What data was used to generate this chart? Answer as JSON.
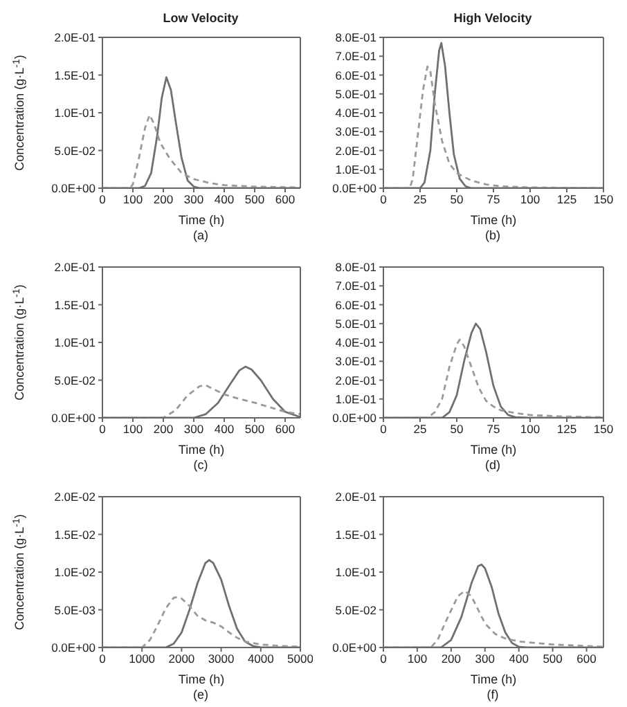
{
  "chart_data": [
    {
      "type": "line",
      "title": "Low Velocity",
      "xlabel": "Time (h)",
      "ylabel": "Concentration (g·L$^{-1}$)",
      "annotations": [
        "(a)"
      ],
      "marker": "none",
      "xlim": [
        0,
        650
      ],
      "xticks": [
        0,
        100,
        200,
        300,
        400,
        500,
        600
      ],
      "ylim": [
        0,
        0.2
      ],
      "yticks": [
        {
          "value": 0,
          "label": "0.0E+00"
        },
        {
          "value": 0.05,
          "label": "5.0E-02"
        },
        {
          "value": 0.1,
          "label": "1.0E-01"
        },
        {
          "value": 0.15,
          "label": "1.5E-01"
        },
        {
          "value": 0.2,
          "label": "2.0E-01"
        }
      ],
      "series": [
        {
          "color": "#707070",
          "line_style": "solid",
          "x": [
            0,
            120,
            140,
            160,
            180,
            195,
            210,
            225,
            240,
            260,
            280,
            300,
            320,
            650
          ],
          "values": [
            0,
            0,
            0.003,
            0.02,
            0.07,
            0.12,
            0.147,
            0.13,
            0.09,
            0.04,
            0.01,
            0.002,
            0,
            0
          ]
        },
        {
          "color": "#9a9a9a",
          "line_style": "dashed",
          "x": [
            0,
            90,
            100,
            120,
            140,
            155,
            170,
            190,
            220,
            260,
            300,
            350,
            400,
            500,
            650
          ],
          "values": [
            0,
            0,
            0.005,
            0.04,
            0.08,
            0.097,
            0.085,
            0.06,
            0.04,
            0.02,
            0.012,
            0.007,
            0.004,
            0.002,
            0.001
          ]
        }
      ]
    },
    {
      "type": "line",
      "title": "High Velocity",
      "xlabel": "Time (h)",
      "annotations": [
        "(b)"
      ],
      "marker": "none",
      "xlim": [
        0,
        150
      ],
      "xticks": [
        0,
        25,
        50,
        75,
        100,
        125,
        150
      ],
      "ylim": [
        0,
        0.8
      ],
      "yticks": [
        {
          "value": 0,
          "label": "0.0E+00"
        },
        {
          "value": 0.1,
          "label": "1.0E-01"
        },
        {
          "value": 0.2,
          "label": "2.0E-01"
        },
        {
          "value": 0.3,
          "label": "3.0E-01"
        },
        {
          "value": 0.4,
          "label": "4.0E-01"
        },
        {
          "value": 0.5,
          "label": "5.0E-01"
        },
        {
          "value": 0.6,
          "label": "6.0E-01"
        },
        {
          "value": 0.7,
          "label": "7.0E-01"
        },
        {
          "value": 0.8,
          "label": "8.0E-01"
        }
      ],
      "series": [
        {
          "color": "#707070",
          "line_style": "solid",
          "x": [
            0,
            25,
            28,
            32,
            35,
            38,
            39.5,
            42,
            45,
            48,
            52,
            56,
            60,
            150
          ],
          "values": [
            0,
            0,
            0.03,
            0.2,
            0.5,
            0.73,
            0.77,
            0.65,
            0.4,
            0.18,
            0.05,
            0.01,
            0,
            0
          ]
        },
        {
          "color": "#9a9a9a",
          "line_style": "dashed",
          "x": [
            0,
            18,
            20,
            23,
            27,
            30,
            32,
            35,
            40,
            45,
            50,
            55,
            60,
            70,
            80,
            100,
            150
          ],
          "values": [
            0,
            0,
            0.05,
            0.25,
            0.52,
            0.645,
            0.62,
            0.45,
            0.25,
            0.13,
            0.08,
            0.06,
            0.04,
            0.02,
            0.01,
            0.004,
            0
          ]
        }
      ]
    },
    {
      "type": "line",
      "xlabel": "Time (h)",
      "ylabel": "Concentration (g·L$^{-1}$)",
      "annotations": [
        "(c)"
      ],
      "marker": "none",
      "xlim": [
        0,
        650
      ],
      "xticks": [
        0,
        100,
        200,
        300,
        400,
        500,
        600
      ],
      "ylim": [
        0,
        0.2
      ],
      "yticks": [
        {
          "value": 0,
          "label": "0.0E+00"
        },
        {
          "value": 0.05,
          "label": "5.0E-02"
        },
        {
          "value": 0.1,
          "label": "1.0E-01"
        },
        {
          "value": 0.15,
          "label": "1.5E-01"
        },
        {
          "value": 0.2,
          "label": "2.0E-01"
        }
      ],
      "series": [
        {
          "color": "#707070",
          "line_style": "solid",
          "x": [
            0,
            300,
            340,
            380,
            420,
            450,
            470,
            490,
            520,
            560,
            600,
            650
          ],
          "values": [
            0,
            0,
            0.005,
            0.02,
            0.045,
            0.063,
            0.068,
            0.064,
            0.05,
            0.025,
            0.008,
            0.001
          ]
        },
        {
          "color": "#9a9a9a",
          "line_style": "dashed",
          "x": [
            0,
            200,
            240,
            280,
            320,
            340,
            360,
            400,
            450,
            500,
            550,
            600,
            650
          ],
          "values": [
            0,
            0,
            0.01,
            0.03,
            0.042,
            0.043,
            0.039,
            0.031,
            0.025,
            0.02,
            0.014,
            0.008,
            0.005
          ]
        }
      ]
    },
    {
      "type": "line",
      "xlabel": "Time (h)",
      "annotations": [
        "(d)"
      ],
      "marker": "none",
      "xlim": [
        0,
        150
      ],
      "xticks": [
        0,
        25,
        50,
        75,
        100,
        125,
        150
      ],
      "ylim": [
        0,
        0.8
      ],
      "yticks": [
        {
          "value": 0,
          "label": "0.0E+00"
        },
        {
          "value": 0.1,
          "label": "1.0E-01"
        },
        {
          "value": 0.2,
          "label": "2.0E-01"
        },
        {
          "value": 0.3,
          "label": "3.0E-01"
        },
        {
          "value": 0.4,
          "label": "4.0E-01"
        },
        {
          "value": 0.5,
          "label": "5.0E-01"
        },
        {
          "value": 0.6,
          "label": "6.0E-01"
        },
        {
          "value": 0.7,
          "label": "7.0E-01"
        },
        {
          "value": 0.8,
          "label": "8.0E-01"
        }
      ],
      "series": [
        {
          "color": "#707070",
          "line_style": "solid",
          "x": [
            0,
            40,
            45,
            50,
            55,
            60,
            63,
            66,
            70,
            75,
            80,
            85,
            90,
            100,
            150
          ],
          "values": [
            0,
            0,
            0.03,
            0.12,
            0.3,
            0.45,
            0.5,
            0.47,
            0.35,
            0.17,
            0.06,
            0.015,
            0.003,
            0,
            0
          ]
        },
        {
          "color": "#9a9a9a",
          "line_style": "dashed",
          "x": [
            0,
            30,
            35,
            40,
            45,
            50,
            52,
            55,
            60,
            65,
            70,
            75,
            80,
            90,
            100,
            120,
            150
          ],
          "values": [
            0,
            0,
            0.03,
            0.1,
            0.27,
            0.39,
            0.415,
            0.38,
            0.27,
            0.16,
            0.09,
            0.06,
            0.04,
            0.025,
            0.015,
            0.008,
            0.003
          ]
        }
      ]
    },
    {
      "type": "line",
      "xlabel": "Time (h)",
      "ylabel": "Concentration (g·L$^{-1}$)",
      "annotations": [
        "(e)"
      ],
      "marker": "none",
      "xlim": [
        0,
        5000
      ],
      "xticks": [
        0,
        1000,
        2000,
        3000,
        4000,
        5000
      ],
      "ylim": [
        0,
        0.02
      ],
      "yticks": [
        {
          "value": 0,
          "label": "0.0E+00"
        },
        {
          "value": 0.005,
          "label": "5.0E-03"
        },
        {
          "value": 0.01,
          "label": "1.0E-02"
        },
        {
          "value": 0.015,
          "label": "1.5E-02"
        },
        {
          "value": 0.02,
          "label": "2.0E-02"
        }
      ],
      "series": [
        {
          "color": "#707070",
          "line_style": "solid",
          "x": [
            0,
            1600,
            1800,
            2000,
            2200,
            2400,
            2600,
            2700,
            2800,
            3000,
            3200,
            3400,
            3600,
            3800,
            4000,
            5000
          ],
          "values": [
            0,
            0,
            0.0005,
            0.002,
            0.005,
            0.0085,
            0.0112,
            0.0116,
            0.0112,
            0.009,
            0.0055,
            0.0025,
            0.0008,
            0.0002,
            0,
            0
          ]
        },
        {
          "color": "#9a9a9a",
          "line_style": "dashed",
          "x": [
            0,
            1000,
            1200,
            1400,
            1600,
            1800,
            1900,
            2000,
            2200,
            2400,
            2600,
            2800,
            3000,
            3200,
            3400,
            3600,
            4000,
            4500,
            5000
          ],
          "values": [
            0,
            0,
            0.001,
            0.003,
            0.0052,
            0.0066,
            0.0067,
            0.0065,
            0.0055,
            0.0042,
            0.0036,
            0.0033,
            0.0028,
            0.002,
            0.0013,
            0.0008,
            0.0004,
            0.0002,
            0.0001
          ]
        }
      ]
    },
    {
      "type": "line",
      "xlabel": "Time (h)",
      "annotations": [
        "(f)"
      ],
      "marker": "none",
      "xlim": [
        0,
        650
      ],
      "xticks": [
        0,
        100,
        200,
        300,
        400,
        500,
        600
      ],
      "ylim": [
        0,
        0.2
      ],
      "yticks": [
        {
          "value": 0,
          "label": "0.0E+00"
        },
        {
          "value": 0.05,
          "label": "5.0E-02"
        },
        {
          "value": 0.1,
          "label": "1.0E-01"
        },
        {
          "value": 0.15,
          "label": "1.5E-01"
        },
        {
          "value": 0.2,
          "label": "2.0E-01"
        }
      ],
      "series": [
        {
          "color": "#707070",
          "line_style": "solid",
          "x": [
            0,
            170,
            200,
            230,
            260,
            280,
            290,
            300,
            320,
            340,
            360,
            380,
            400,
            420,
            650
          ],
          "values": [
            0,
            0,
            0.01,
            0.04,
            0.085,
            0.108,
            0.11,
            0.105,
            0.08,
            0.045,
            0.02,
            0.006,
            0.001,
            0,
            0
          ]
        },
        {
          "color": "#9a9a9a",
          "line_style": "dashed",
          "x": [
            0,
            140,
            160,
            190,
            220,
            240,
            260,
            280,
            300,
            330,
            360,
            400,
            500,
            600,
            650
          ],
          "values": [
            0,
            0,
            0.01,
            0.04,
            0.068,
            0.075,
            0.068,
            0.05,
            0.032,
            0.018,
            0.012,
            0.008,
            0.004,
            0.002,
            0.001
          ]
        }
      ]
    }
  ]
}
